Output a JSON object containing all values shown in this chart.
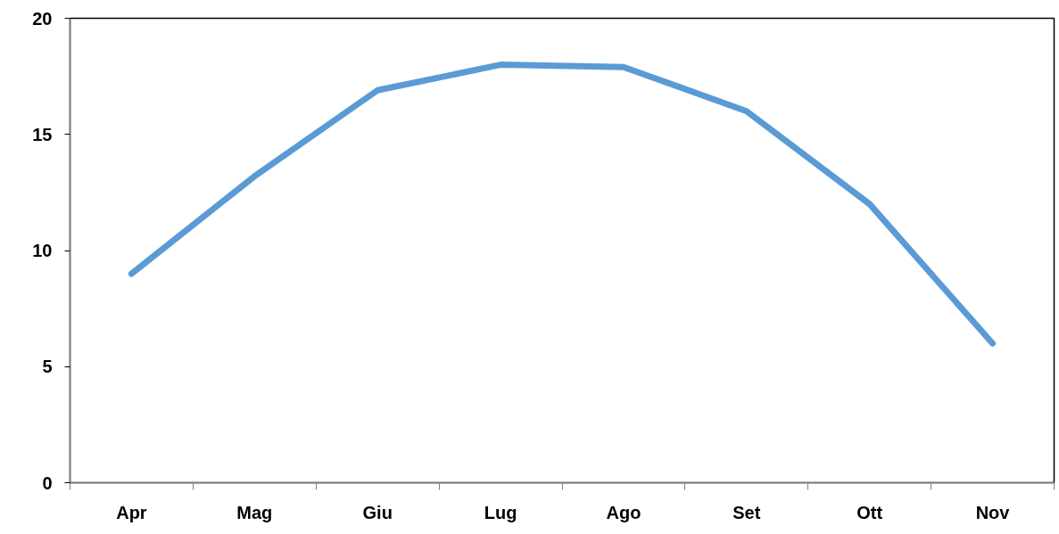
{
  "chart_data": {
    "type": "line",
    "categories": [
      "Apr",
      "Mag",
      "Giu",
      "Lug",
      "Ago",
      "Set",
      "Ott",
      "Nov"
    ],
    "series": [
      {
        "color": "#5b9bd5",
        "values": [
          9.0,
          13.2,
          16.9,
          18.0,
          17.9,
          16.0,
          12.0,
          6.0
        ]
      }
    ],
    "ylim": [
      0,
      20
    ],
    "yticks": [
      0,
      5,
      10,
      15,
      20
    ],
    "line_style": "solid"
  }
}
